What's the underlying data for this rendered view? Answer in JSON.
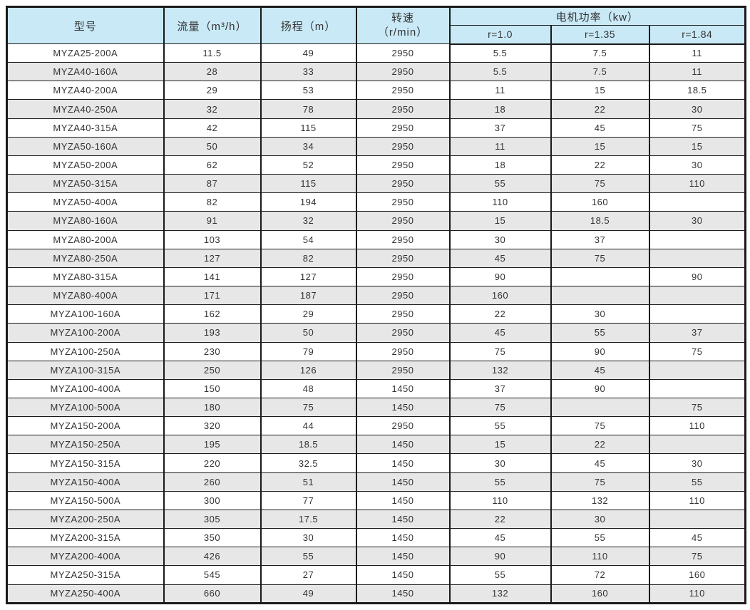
{
  "table": {
    "headers": {
      "model": "型号",
      "flow": "流量（m³/h）",
      "head": "扬程（m）",
      "speed_line1": "转速",
      "speed_line2": "（r/min）",
      "power_group": "电机功率（kw）",
      "power_r10": "r=1.0",
      "power_r135": "r=1.35",
      "power_r184": "r=1.84"
    },
    "rows": [
      [
        "MYZA25-200A",
        "11.5",
        "49",
        "2950",
        "5.5",
        "7.5",
        "11"
      ],
      [
        "MYZA40-160A",
        "28",
        "33",
        "2950",
        "5.5",
        "7.5",
        "11"
      ],
      [
        "MYZA40-200A",
        "29",
        "53",
        "2950",
        "11",
        "15",
        "18.5"
      ],
      [
        "MYZA40-250A",
        "32",
        "78",
        "2950",
        "18",
        "22",
        "30"
      ],
      [
        "MYZA40-315A",
        "42",
        "115",
        "2950",
        "37",
        "45",
        "75"
      ],
      [
        "MYZA50-160A",
        "50",
        "34",
        "2950",
        "11",
        "15",
        "15"
      ],
      [
        "MYZA50-200A",
        "62",
        "52",
        "2950",
        "18",
        "22",
        "30"
      ],
      [
        "MYZA50-315A",
        "87",
        "115",
        "2950",
        "55",
        "75",
        "110"
      ],
      [
        "MYZA50-400A",
        "82",
        "194",
        "2950",
        "110",
        "160",
        ""
      ],
      [
        "MYZA80-160A",
        "91",
        "32",
        "2950",
        "15",
        "18.5",
        "30"
      ],
      [
        "MYZA80-200A",
        "103",
        "54",
        "2950",
        "30",
        "37",
        ""
      ],
      [
        "MYZA80-250A",
        "127",
        "82",
        "2950",
        "45",
        "75",
        ""
      ],
      [
        "MYZA80-315A",
        "141",
        "127",
        "2950",
        "90",
        "",
        "90"
      ],
      [
        "MYZA80-400A",
        "171",
        "187",
        "2950",
        "160",
        "",
        ""
      ],
      [
        "MYZA100-160A",
        "162",
        "29",
        "2950",
        "22",
        "30",
        ""
      ],
      [
        "MYZA100-200A",
        "193",
        "50",
        "2950",
        "45",
        "55",
        "37"
      ],
      [
        "MYZA100-250A",
        "230",
        "79",
        "2950",
        "75",
        "90",
        "75"
      ],
      [
        "MYZA100-315A",
        "250",
        "126",
        "2950",
        "132",
        "45",
        ""
      ],
      [
        "MYZA100-400A",
        "150",
        "48",
        "1450",
        "37",
        "90",
        ""
      ],
      [
        "MYZA100-500A",
        "180",
        "75",
        "1450",
        "75",
        "",
        "75"
      ],
      [
        "MYZA150-200A",
        "320",
        "44",
        "2950",
        "55",
        "75",
        "110"
      ],
      [
        "MYZA150-250A",
        "195",
        "18.5",
        "1450",
        "15",
        "22",
        ""
      ],
      [
        "MYZA150-315A",
        "220",
        "32.5",
        "1450",
        "30",
        "45",
        "30"
      ],
      [
        "MYZA150-400A",
        "260",
        "51",
        "1450",
        "55",
        "75",
        "55"
      ],
      [
        "MYZA150-500A",
        "300",
        "77",
        "1450",
        "110",
        "132",
        "110"
      ],
      [
        "MYZA200-250A",
        "305",
        "17.5",
        "1450",
        "22",
        "30",
        ""
      ],
      [
        "MYZA200-315A",
        "350",
        "30",
        "1450",
        "45",
        "55",
        "45"
      ],
      [
        "MYZA200-400A",
        "426",
        "55",
        "1450",
        "90",
        "110",
        "75"
      ],
      [
        "MYZA250-315A",
        "545",
        "27",
        "1450",
        "55",
        "72",
        "160"
      ],
      [
        "MYZA250-400A",
        "660",
        "49",
        "1450",
        "132",
        "160",
        "110"
      ]
    ]
  },
  "colors": {
    "header_bg": "#c9e9f6",
    "stripe_bg": "#e7e7e7",
    "border": "#1a1a1a",
    "text": "#333333"
  }
}
